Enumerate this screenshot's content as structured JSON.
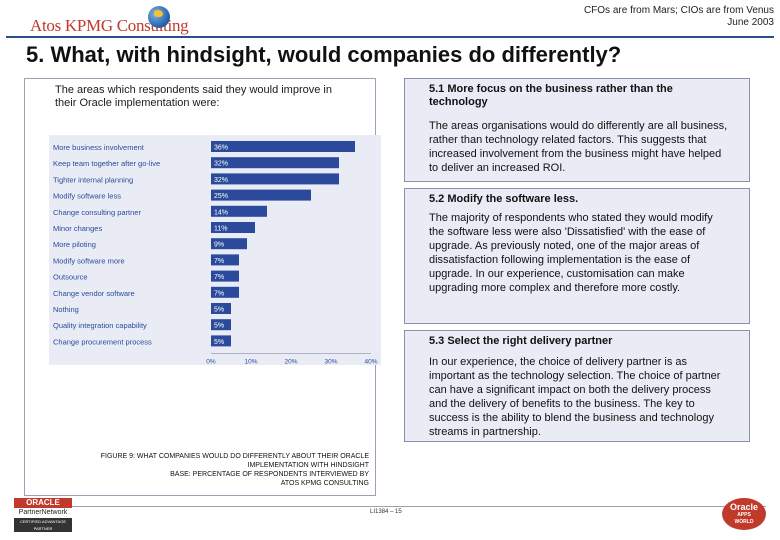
{
  "header": {
    "logo_text": "Atos KPMG Consulting",
    "right_line1": "CFOs are from Mars; CIOs are from Venus",
    "right_line2": "June 2003"
  },
  "title": "5.  What, with hindsight, would companies do differently?",
  "left": {
    "intro": "The areas which respondents said they would improve in their Oracle implementation were:",
    "caption_line1": "FIGURE 9: WHAT COMPANIES WOULD DO DIFFERENTLY ABOUT THEIR ORACLE",
    "caption_line2": "IMPLEMENTATION WITH HINDSIGHT",
    "caption_line3": "BASE: PERCENTAGE OF RESPONDENTS INTERVIEWED BY",
    "caption_line4": "ATOS KPMG CONSULTING"
  },
  "chart_data": {
    "type": "bar",
    "orientation": "horizontal",
    "categories": [
      "More business involvement",
      "Keep team together after go-live",
      "Tighter internal planning",
      "Modify software less",
      "Change consulting partner",
      "Minor changes",
      "More piloting",
      "Modify software more",
      "Outsource",
      "Change vendor software",
      "Nothing",
      "Quality integration capability",
      "Change procurement process"
    ],
    "values": [
      36,
      32,
      32,
      25,
      14,
      11,
      9,
      7,
      7,
      7,
      5,
      5,
      5
    ],
    "value_labels": [
      "36%",
      "32%",
      "32%",
      "25%",
      "14%",
      "11%",
      "9%",
      "7%",
      "7%",
      "7%",
      "5%",
      "5%",
      "5%"
    ],
    "x_ticks": [
      "0%",
      "10%",
      "20%",
      "30%",
      "40%"
    ],
    "xlim": [
      0,
      40
    ],
    "bar_color": "#2b4a9c",
    "label_color": "#2b4a9c",
    "grid": false,
    "legend": false
  },
  "sections": [
    {
      "heading": "5.1 More focus on the business rather than the technology",
      "body": "The areas organisations would do differently are all business, rather than technology related factors. This suggests that increased involvement from the business might have helped to deliver an increased ROI."
    },
    {
      "heading": "5.2 Modify the software less.",
      "body": "The majority of respondents who stated they would modify the software less were also 'Dissatisfied' with the ease of upgrade. As previously noted, one of the major areas of dissatisfaction following implementation is the ease of upgrade. In our experience, customisation can make upgrading more complex and therefore more costly."
    },
    {
      "heading": "5.3 Select the right delivery partner",
      "body": "In our experience, the choice of delivery partner is as important as the technology selection. The choice of partner can have a significant impact on both the delivery process and the delivery of benefits to the business. The key to success is the ability to blend the business and technology streams in partnership."
    }
  ],
  "footer": {
    "oracle_logo": "ORACLE",
    "partner_network": "PartnerNetwork",
    "certified": "CERTIFIED ADVANTAGE PARTNER",
    "page_number": "LI1384 – 15",
    "oracle_apps_top": "Oracle",
    "oracle_apps_mid": "APPS",
    "oracle_apps_bottom": "WORLD"
  }
}
